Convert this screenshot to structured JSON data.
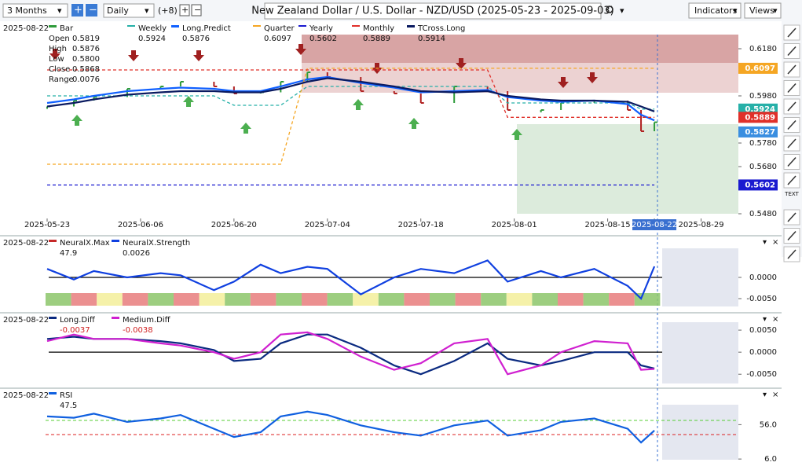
{
  "toolbar": {
    "range": "3 Months",
    "interval": "Daily",
    "offset": "(+8)",
    "title": "New Zealand Dollar / U.S. Dollar - NZD/USD (2025-05-23 - 2025-09-03)",
    "indicators": "Indicators",
    "views": "Views"
  },
  "side_tool_text": "TEXT",
  "chart_data": [
    {
      "type": "line",
      "date": "2025-08-22",
      "ohlc": [
        {
          "label": "Open",
          "value": "0.5819"
        },
        {
          "label": "High",
          "value": "0.5876"
        },
        {
          "label": "Low",
          "value": "0.5800"
        },
        {
          "label": "Close",
          "value": "0.5868"
        },
        {
          "label": "Range",
          "value": "0.0076"
        }
      ],
      "x": [
        "2025-05-23",
        "2025-05-27",
        "2025-05-30",
        "2025-06-04",
        "2025-06-09",
        "2025-06-12",
        "2025-06-17",
        "2025-06-20",
        "2025-06-24",
        "2025-06-27",
        "2025-07-01",
        "2025-07-04",
        "2025-07-09",
        "2025-07-14",
        "2025-07-18",
        "2025-07-23",
        "2025-07-28",
        "2025-07-31",
        "2025-08-05",
        "2025-08-08",
        "2025-08-13",
        "2025-08-18",
        "2025-08-20",
        "2025-08-22"
      ],
      "xlim": [
        "2025-05-23",
        "2025-09-03"
      ],
      "xticks": [
        "2025-05-23",
        "2025-06-06",
        "2025-06-20",
        "2025-07-04",
        "2025-07-18",
        "2025-08-01",
        "2025-08-15",
        "2025-08-22",
        "2025-08-29"
      ],
      "ylim": [
        0.546,
        0.624
      ],
      "yticks": [
        {
          "value": 0.618,
          "label": "0.6180"
        },
        {
          "value": 0.598,
          "label": "0.5980"
        },
        {
          "value": 0.578,
          "label": "0.5780"
        },
        {
          "value": 0.568,
          "label": "0.5680"
        },
        {
          "value": 0.548,
          "label": "0.5480"
        }
      ],
      "badges": [
        {
          "value": 0.6097,
          "color": "#f5a623"
        },
        {
          "value": 0.5924,
          "color": "#26b0a8"
        },
        {
          "value": 0.5889,
          "color": "#e0302a"
        },
        {
          "value": 0.5827,
          "color": "#3a8ee0"
        },
        {
          "value": 0.5602,
          "color": "#1a1ad0"
        }
      ],
      "series": [
        {
          "name": "Bar",
          "style": "bar",
          "color": "#2e9b3a",
          "down_color": "#b02020",
          "values": [
            0.5935,
            0.596,
            0.5975,
            0.601,
            0.602,
            0.604,
            0.602,
            0.599,
            0.5995,
            0.604,
            0.608,
            0.606,
            0.6,
            0.599,
            0.595,
            0.602,
            0.6,
            0.592,
            0.592,
            0.595,
            0.596,
            0.592,
            0.583,
            0.5868
          ]
        },
        {
          "name": "Weekly",
          "style": "dashed",
          "color": "#26b0a8",
          "legend_value": 0.5924,
          "values": [
            0.598,
            0.598,
            0.598,
            0.598,
            0.598,
            0.598,
            0.598,
            0.594,
            0.594,
            0.594,
            0.602,
            0.602,
            0.602,
            0.602,
            0.602,
            0.602,
            0.602,
            0.595,
            0.595,
            0.595,
            0.595,
            0.595,
            0.5924,
            0.5924
          ]
        },
        {
          "name": "Long.Predict",
          "style": "solid",
          "color": "#1060ff",
          "legend_value": 0.5876,
          "values": [
            0.595,
            0.5965,
            0.598,
            0.6,
            0.601,
            0.6015,
            0.601,
            0.6,
            0.6,
            0.602,
            0.605,
            0.606,
            0.6035,
            0.6015,
            0.5995,
            0.6,
            0.6005,
            0.5975,
            0.596,
            0.5955,
            0.596,
            0.5945,
            0.59,
            0.5876
          ]
        },
        {
          "name": "Quarter",
          "style": "dashed",
          "color": "#f5a623",
          "legend_value": 0.6097,
          "values": [
            0.569,
            0.569,
            0.569,
            0.569,
            0.569,
            0.569,
            0.569,
            0.569,
            0.569,
            0.569,
            0.6097,
            0.6097,
            0.6097,
            0.6097,
            0.6097,
            0.6097,
            0.6097,
            0.6097,
            0.6097,
            0.6097,
            0.6097,
            0.6097,
            0.6097,
            0.6097
          ]
        },
        {
          "name": "Yearly",
          "style": "dashed",
          "color": "#1a1ad0",
          "legend_value": 0.5602,
          "values": [
            0.5602,
            0.5602,
            0.5602,
            0.5602,
            0.5602,
            0.5602,
            0.5602,
            0.5602,
            0.5602,
            0.5602,
            0.5602,
            0.5602,
            0.5602,
            0.5602,
            0.5602,
            0.5602,
            0.5602,
            0.5602,
            0.5602,
            0.5602,
            0.5602,
            0.5602,
            0.5602,
            0.5602
          ]
        },
        {
          "name": "Monthly",
          "style": "dashed",
          "color": "#e0302a",
          "legend_value": 0.5889,
          "values": [
            0.609,
            0.609,
            0.609,
            0.609,
            0.609,
            0.609,
            0.609,
            0.609,
            0.609,
            0.609,
            0.609,
            0.609,
            0.609,
            0.609,
            0.609,
            0.609,
            0.609,
            0.5889,
            0.5889,
            0.5889,
            0.5889,
            0.5889,
            0.5889,
            0.5889
          ]
        },
        {
          "name": "TCross.Long",
          "style": "solid",
          "color": "#0a1a60",
          "legend_value": 0.5914,
          "values": [
            0.5935,
            0.595,
            0.5965,
            0.5985,
            0.5995,
            0.6,
            0.6,
            0.5995,
            0.5995,
            0.601,
            0.604,
            0.6055,
            0.604,
            0.602,
            0.6,
            0.5995,
            0.6,
            0.598,
            0.5965,
            0.596,
            0.596,
            0.5955,
            0.5935,
            0.5914
          ]
        }
      ]
    },
    {
      "type": "line",
      "date": "2025-08-22",
      "x": [
        "2025-05-23",
        "2025-05-27",
        "2025-05-30",
        "2025-06-04",
        "2025-06-09",
        "2025-06-12",
        "2025-06-17",
        "2025-06-20",
        "2025-06-24",
        "2025-06-27",
        "2025-07-01",
        "2025-07-04",
        "2025-07-09",
        "2025-07-14",
        "2025-07-18",
        "2025-07-23",
        "2025-07-28",
        "2025-07-31",
        "2025-08-05",
        "2025-08-08",
        "2025-08-13",
        "2025-08-18",
        "2025-08-20",
        "2025-08-22"
      ],
      "xlim": [
        "2025-05-23",
        "2025-09-03"
      ],
      "ylim": [
        -0.00685,
        0.00685
      ],
      "yticks": [
        {
          "value": 0,
          "label": "0.0000"
        },
        {
          "value": -0.005,
          "label": "-0.0050"
        }
      ],
      "zero_line": true,
      "series": [
        {
          "name": "NeuralX.Max",
          "style": "none",
          "color": "#c62828",
          "legend_value": 47.9
        },
        {
          "name": "NeuralX.Strength",
          "style": "solid",
          "color": "#1040e0",
          "legend_value": 0.0026,
          "values": [
            0.002,
            -0.0005,
            0.0015,
            0,
            0.001,
            0.0005,
            -0.003,
            -0.001,
            0.003,
            0.001,
            0.0025,
            0.002,
            -0.004,
            0,
            0.002,
            0.001,
            0.004,
            -0.001,
            0.0015,
            0,
            0.002,
            -0.002,
            -0.005,
            0.0026
          ]
        }
      ]
    },
    {
      "type": "line",
      "date": "2025-08-22",
      "x": [
        "2025-05-23",
        "2025-05-27",
        "2025-05-30",
        "2025-06-04",
        "2025-06-09",
        "2025-06-12",
        "2025-06-17",
        "2025-06-20",
        "2025-06-24",
        "2025-06-27",
        "2025-07-01",
        "2025-07-04",
        "2025-07-09",
        "2025-07-14",
        "2025-07-18",
        "2025-07-23",
        "2025-07-28",
        "2025-07-31",
        "2025-08-05",
        "2025-08-08",
        "2025-08-13",
        "2025-08-18",
        "2025-08-20",
        "2025-08-22"
      ],
      "xlim": [
        "2025-05-23",
        "2025-09-03"
      ],
      "ylim": [
        -0.0071,
        0.0068
      ],
      "yticks": [
        {
          "value": 0.005,
          "label": "0.0050"
        },
        {
          "value": 0,
          "label": "0.0000"
        },
        {
          "value": -0.005,
          "label": "-0.0050"
        }
      ],
      "zero_line": true,
      "series": [
        {
          "name": "Long.Diff",
          "style": "solid",
          "color": "#0a2a80",
          "legend_value": -0.0037,
          "values": [
            0.003,
            0.0035,
            0.003,
            0.003,
            0.0025,
            0.002,
            0.0005,
            -0.002,
            -0.0015,
            0.002,
            0.004,
            0.004,
            0.001,
            -0.003,
            -0.005,
            -0.002,
            0.002,
            -0.0015,
            -0.003,
            -0.002,
            0,
            0,
            -0.003,
            -0.0037
          ]
        },
        {
          "name": "Medium.Diff",
          "style": "solid",
          "color": "#d020d0",
          "legend_value": -0.0038,
          "values": [
            0.0025,
            0.004,
            0.003,
            0.003,
            0.002,
            0.0015,
            0,
            -0.0015,
            0,
            0.004,
            0.0045,
            0.003,
            -0.001,
            -0.004,
            -0.0025,
            0.002,
            0.003,
            -0.005,
            -0.003,
            0,
            0.0025,
            0.002,
            -0.004,
            -0.0038
          ]
        }
      ]
    },
    {
      "type": "line",
      "date": "2025-08-22",
      "x": [
        "2025-05-23",
        "2025-05-27",
        "2025-05-30",
        "2025-06-04",
        "2025-06-09",
        "2025-06-12",
        "2025-06-17",
        "2025-06-20",
        "2025-06-24",
        "2025-06-27",
        "2025-07-01",
        "2025-07-04",
        "2025-07-09",
        "2025-07-14",
        "2025-07-18",
        "2025-07-23",
        "2025-07-28",
        "2025-07-31",
        "2025-08-05",
        "2025-08-08",
        "2025-08-13",
        "2025-08-18",
        "2025-08-20",
        "2025-08-22"
      ],
      "xlim": [
        "2025-05-23",
        "2025-09-03"
      ],
      "ylim": [
        5,
        85
      ],
      "yticks": [
        {
          "value": 56,
          "label": "56.0"
        },
        {
          "value": 6,
          "label": "6.0"
        }
      ],
      "series": [
        {
          "name": "RSI",
          "style": "solid",
          "color": "#1060e0",
          "legend_value": 47.5,
          "values": [
            68,
            66,
            72,
            60,
            65,
            70,
            50,
            38,
            45,
            68,
            75,
            70,
            55,
            45,
            40,
            55,
            62,
            40,
            48,
            60,
            65,
            50,
            30,
            47.5
          ]
        }
      ]
    }
  ]
}
